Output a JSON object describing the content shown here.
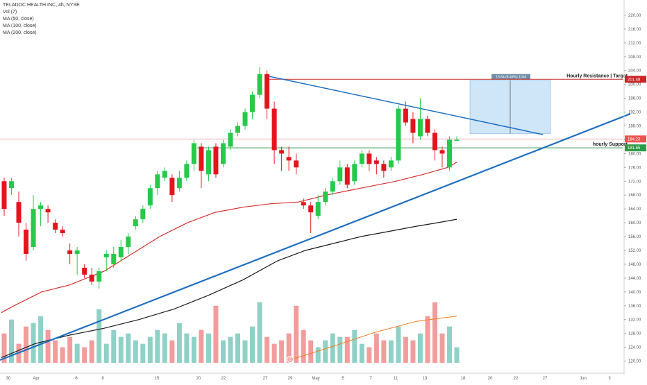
{
  "legend": {
    "title": "TELADOC HEALTH INC, 4h, NYSE",
    "lines": [
      "Vol (7)",
      "MA (50, close)",
      "MA (100, close)",
      "MA (200, close)"
    ]
  },
  "colors": {
    "bull": "#26c94a",
    "bear": "#e3141e",
    "vol_bull": "#8fd1c6",
    "vol_bear": "#f29c9c",
    "ma_red": "#d2302f",
    "ma_black": "#1a1a1a",
    "ma_orange": "#f57c1f",
    "trendline": "#1f6fc0",
    "resistance": "#c62828",
    "support": "#2e9a47",
    "box_fill": "#bfdcf5"
  },
  "chart_data": {
    "type": "candlestick",
    "y_axis_ticks": [
      "220.00",
      "216.00",
      "212.00",
      "208.00",
      "204.00",
      "200.00",
      "196.00",
      "192.00",
      "188.00",
      "184.00",
      "180.00",
      "176.00",
      "172.00",
      "168.00",
      "164.00",
      "160.00",
      "156.00",
      "152.00",
      "148.00",
      "144.00",
      "140.00",
      "136.00",
      "132.00",
      "128.00",
      "124.00",
      "120.00"
    ],
    "ylim": [
      118.5,
      222
    ],
    "x_axis_ticks": [
      "30",
      "Apr",
      "6",
      "8",
      "15",
      "20",
      "22",
      "27",
      "29",
      "May",
      "5",
      "7",
      "11",
      "13",
      "18",
      "20",
      "22",
      "27",
      "Jun",
      "3"
    ],
    "price_labels": {
      "current": "184.23",
      "resistance": "201.48",
      "support": "181.65"
    },
    "levels": {
      "resistance": 201.48,
      "support": 181.65,
      "current": 184.23
    },
    "annotations": {
      "resistance_label": "Hourly Resistance | Target",
      "support_label": "hourly Support",
      "measure_label": "15.64 (8.49%) 1164"
    },
    "measure_box": {
      "low": 185.8,
      "high": 201.2
    },
    "volume_marker": "E",
    "candles": [
      [
        172,
        164,
        173,
        162
      ],
      [
        170,
        172,
        173,
        168
      ],
      [
        166,
        160,
        169,
        156
      ],
      [
        158,
        151,
        160,
        149
      ],
      [
        153,
        164,
        168,
        152
      ],
      [
        164,
        165,
        166,
        159
      ],
      [
        164,
        163,
        165,
        160
      ],
      [
        160,
        158,
        161,
        157
      ],
      [
        158,
        157,
        159,
        156
      ],
      [
        152,
        151,
        154,
        148
      ],
      [
        151,
        152,
        153,
        145
      ],
      [
        147,
        145,
        148,
        144
      ],
      [
        145,
        143,
        147,
        142
      ],
      [
        143,
        146,
        147,
        141
      ],
      [
        150,
        151,
        152,
        146
      ],
      [
        148,
        151,
        153,
        147
      ],
      [
        150,
        153,
        155,
        149
      ],
      [
        153,
        156,
        157,
        151
      ],
      [
        159,
        161,
        162,
        158
      ],
      [
        161,
        164,
        165,
        160
      ],
      [
        165,
        170,
        171,
        164
      ],
      [
        170,
        174,
        175,
        168
      ],
      [
        173,
        175,
        176,
        172
      ],
      [
        173,
        168,
        174,
        166
      ],
      [
        170,
        173,
        175,
        169
      ],
      [
        173,
        177,
        178,
        172
      ],
      [
        177,
        183,
        184,
        175
      ],
      [
        182,
        175,
        183,
        170
      ],
      [
        174,
        181,
        182,
        172
      ],
      [
        182,
        174,
        183,
        173
      ],
      [
        177,
        183,
        184,
        176
      ],
      [
        182,
        186,
        187,
        181
      ],
      [
        186,
        188,
        189,
        185
      ],
      [
        188,
        192,
        193,
        187
      ],
      [
        192,
        197,
        198,
        190
      ],
      [
        197,
        203,
        205,
        196
      ],
      [
        203,
        193,
        204,
        190
      ],
      [
        193,
        181,
        195,
        177
      ],
      [
        181,
        180,
        182,
        175
      ],
      [
        179,
        178,
        182,
        175
      ],
      [
        178,
        176,
        180,
        174
      ],
      [
        166,
        165,
        167,
        164
      ],
      [
        165,
        163,
        166,
        157
      ],
      [
        162,
        166,
        168,
        161
      ],
      [
        166,
        169,
        170,
        165
      ],
      [
        169,
        172,
        173,
        168
      ],
      [
        172,
        176,
        178,
        171
      ],
      [
        176,
        171,
        177,
        170
      ],
      [
        172,
        177,
        178,
        171
      ],
      [
        177,
        180,
        181,
        176
      ],
      [
        180,
        177,
        181,
        175
      ],
      [
        178,
        177,
        179,
        174
      ],
      [
        177,
        175,
        178,
        173
      ],
      [
        176,
        178,
        179,
        175
      ],
      [
        178,
        193,
        194,
        177
      ],
      [
        193,
        189,
        195,
        188
      ],
      [
        190,
        186,
        192,
        183
      ],
      [
        185,
        190,
        196,
        184
      ],
      [
        190,
        186,
        191,
        185
      ],
      [
        186,
        181,
        187,
        178
      ],
      [
        181,
        180,
        182,
        176
      ],
      [
        176,
        184,
        185,
        175
      ],
      [
        184,
        184,
        185,
        184
      ]
    ],
    "volumes": [
      128,
      132,
      125,
      130,
      131,
      133,
      129,
      126,
      124,
      127,
      125,
      124,
      126,
      135,
      125,
      129,
      127,
      128,
      126,
      125,
      127,
      129,
      128,
      126,
      131,
      128,
      127,
      129,
      128,
      136,
      126,
      127,
      128,
      126,
      130,
      137,
      127,
      125,
      126,
      128,
      136,
      129,
      126,
      124,
      126,
      128,
      127,
      127,
      129,
      125,
      124,
      128,
      126,
      126,
      130,
      127,
      126,
      128,
      133,
      137,
      128,
      130,
      124
    ],
    "ma50": [
      [
        2,
        134
      ],
      [
        20,
        136
      ],
      [
        60,
        140
      ],
      [
        100,
        142
      ],
      [
        150,
        146
      ],
      [
        190,
        151
      ],
      [
        230,
        156
      ],
      [
        270,
        160
      ],
      [
        310,
        163
      ],
      [
        350,
        164.5
      ],
      [
        390,
        165.5
      ],
      [
        430,
        166
      ],
      [
        470,
        168
      ],
      [
        520,
        170
      ],
      [
        570,
        172
      ],
      [
        610,
        174
      ],
      [
        645,
        176
      ],
      [
        658,
        177.5
      ]
    ],
    "ma100": [
      [
        2,
        121
      ],
      [
        50,
        125
      ],
      [
        100,
        127.5
      ],
      [
        150,
        129.5
      ],
      [
        200,
        132
      ],
      [
        250,
        135
      ],
      [
        300,
        139
      ],
      [
        350,
        143.5
      ],
      [
        400,
        149
      ],
      [
        440,
        152
      ],
      [
        480,
        154
      ],
      [
        520,
        156
      ],
      [
        560,
        157.5
      ],
      [
        600,
        159
      ],
      [
        630,
        160
      ],
      [
        658,
        161
      ]
    ],
    "vol_ma": [
      [
        418,
        120.3
      ],
      [
        480,
        124.3
      ],
      [
        540,
        128.3
      ],
      [
        600,
        131.5
      ],
      [
        658,
        133
      ]
    ],
    "trendline_main": [
      [
        0,
        120.3
      ],
      [
        908,
        191.5
      ]
    ],
    "trendline_down": [
      [
        384,
        202.5
      ],
      [
        782,
        185.5
      ]
    ]
  }
}
